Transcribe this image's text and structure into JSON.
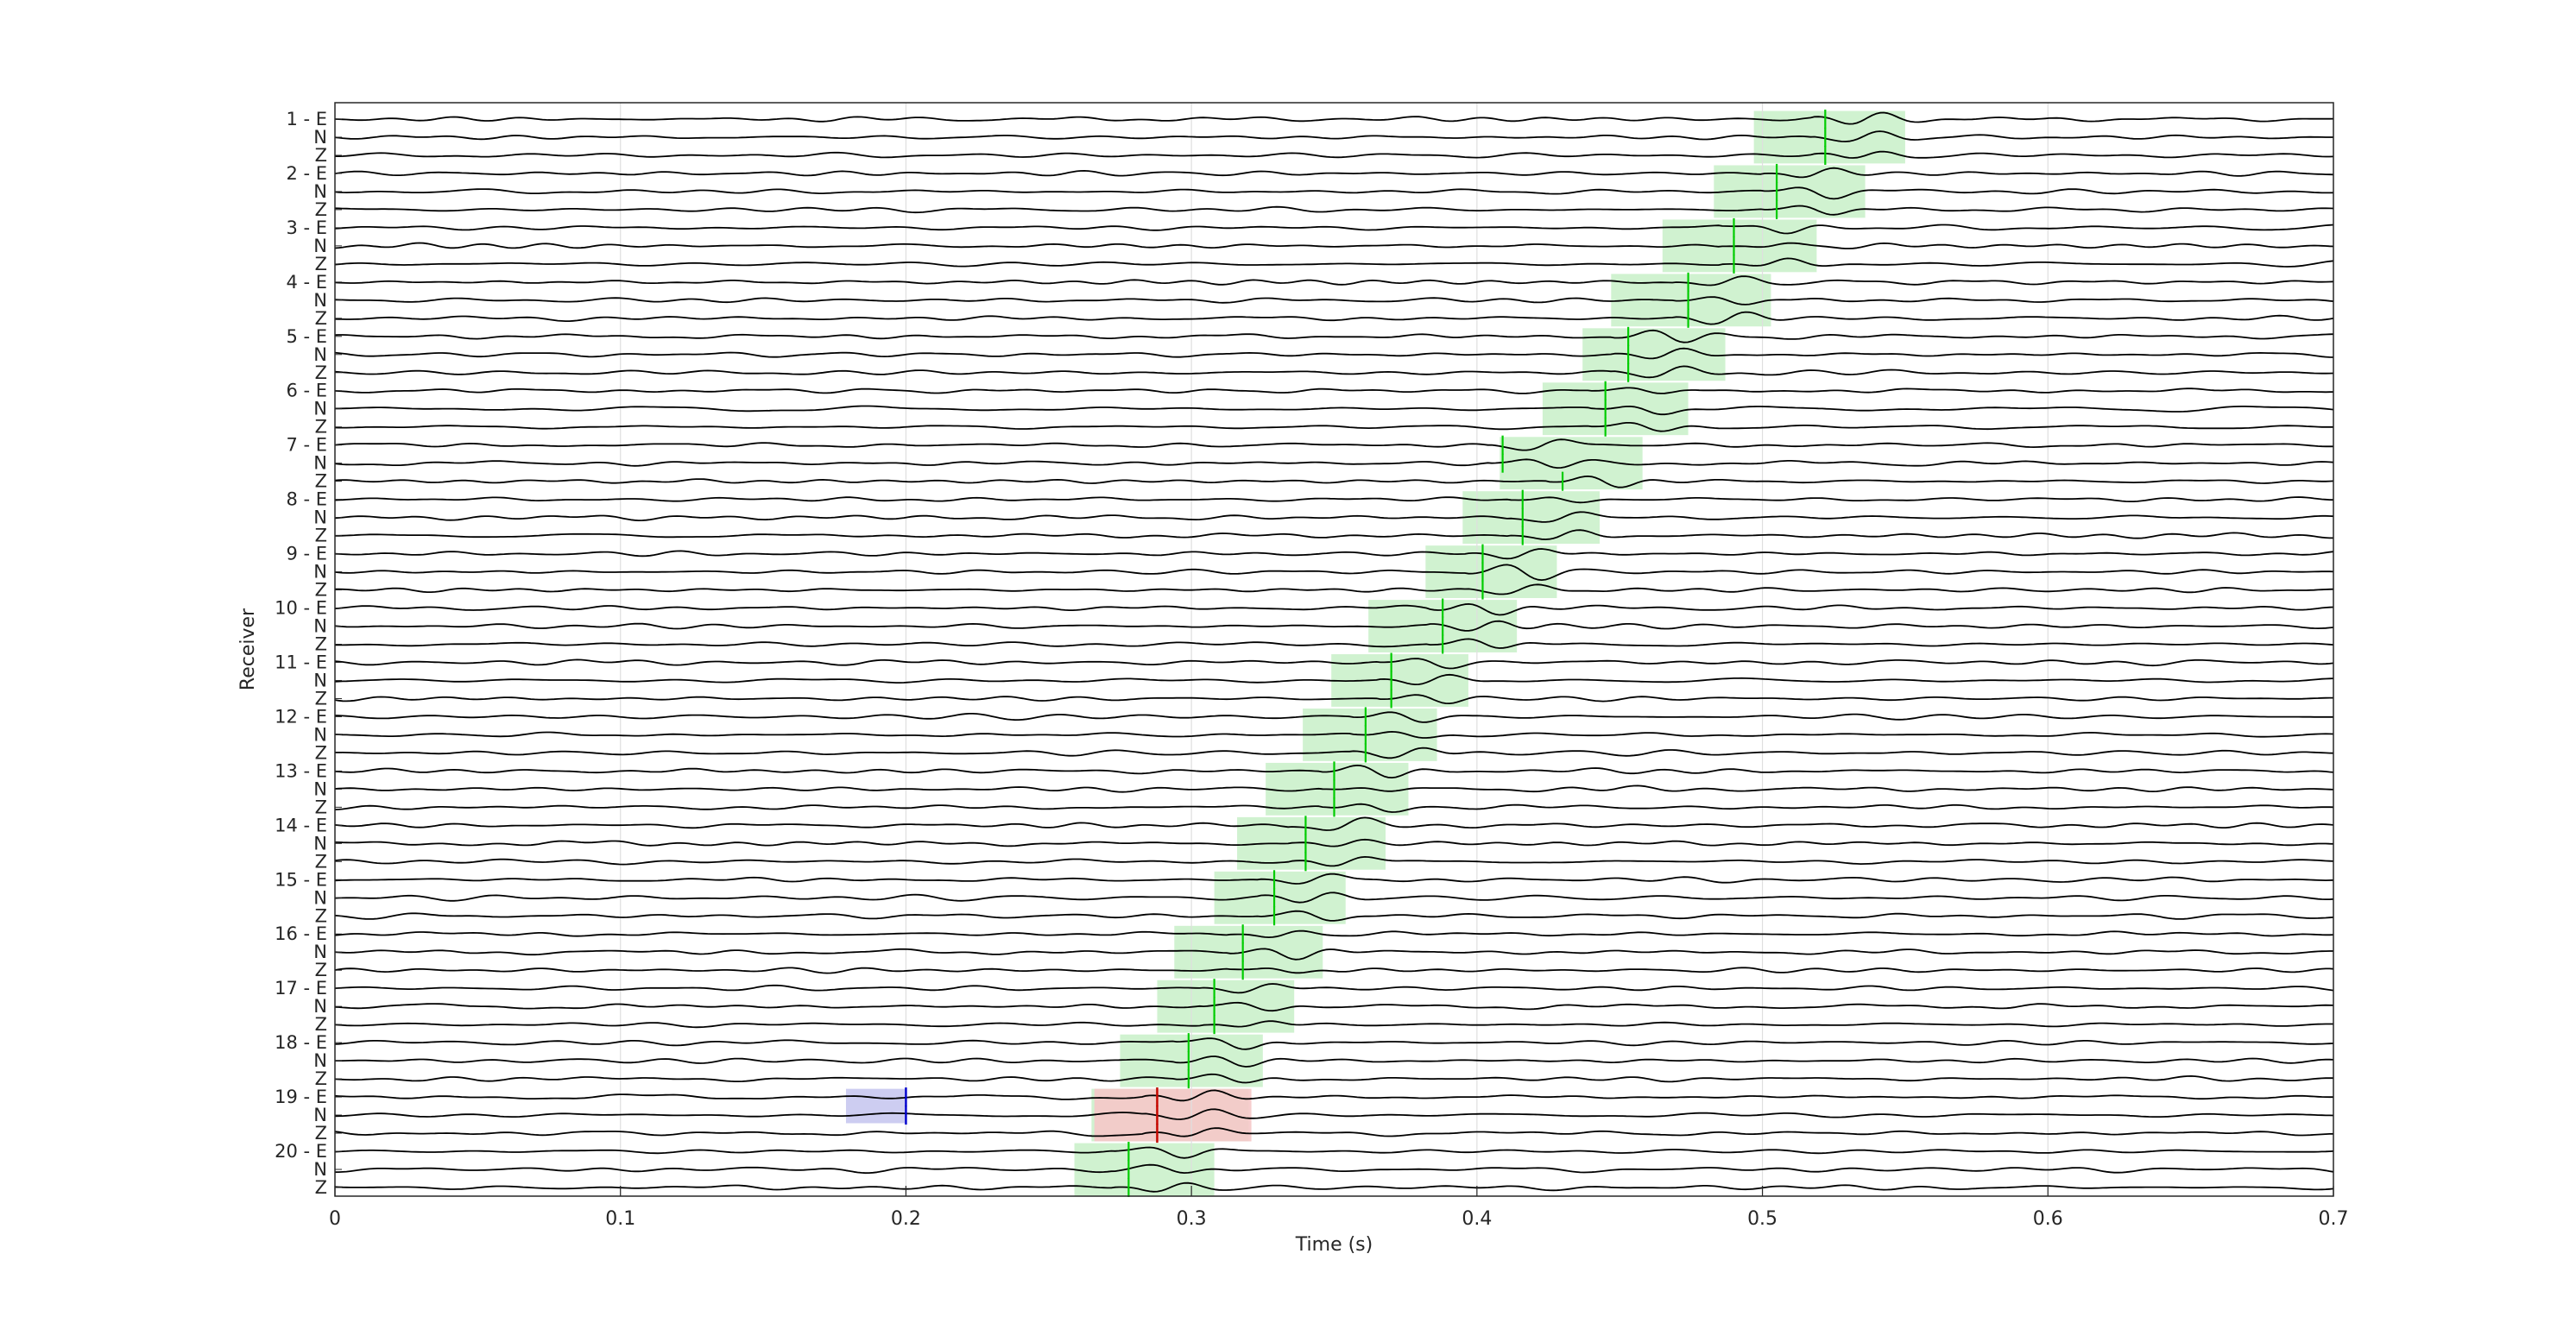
{
  "chart_data": {
    "type": "seismic-trace-plot",
    "xlabel": "Time (s)",
    "ylabel": "Receiver",
    "xlim": [
      0,
      0.7
    ],
    "xticks": [
      0,
      0.1,
      0.2,
      0.3,
      0.4,
      0.5,
      0.6,
      0.7
    ],
    "xtick_labels": [
      "0",
      "0.1",
      "0.2",
      "0.3",
      "0.4",
      "0.5",
      "0.6",
      "0.7"
    ],
    "grid": "vertical",
    "components": [
      "E",
      "N",
      "Z"
    ],
    "receivers": [
      1,
      2,
      3,
      4,
      5,
      6,
      7,
      8,
      9,
      10,
      11,
      12,
      13,
      14,
      15,
      16,
      17,
      18,
      19,
      20
    ],
    "arrivals": [
      {
        "receiver": 1,
        "pick_E": 0.522,
        "pick_N": 0.522,
        "pick_Z": 0.522,
        "window": [
          0.497,
          0.55
        ]
      },
      {
        "receiver": 2,
        "pick_E": 0.505,
        "pick_N": 0.505,
        "pick_Z": 0.505,
        "window": [
          0.483,
          0.536
        ]
      },
      {
        "receiver": 3,
        "pick_E": 0.49,
        "pick_N": 0.49,
        "pick_Z": 0.49,
        "window": [
          0.465,
          0.519
        ]
      },
      {
        "receiver": 4,
        "pick_E": 0.474,
        "pick_N": 0.474,
        "pick_Z": 0.474,
        "window": [
          0.447,
          0.503
        ]
      },
      {
        "receiver": 5,
        "pick_E": 0.453,
        "pick_N": 0.453,
        "pick_Z": 0.453,
        "window": [
          0.437,
          0.487
        ]
      },
      {
        "receiver": 6,
        "pick_E": 0.445,
        "pick_N": 0.445,
        "pick_Z": 0.445,
        "window": [
          0.423,
          0.474
        ]
      },
      {
        "receiver": 7,
        "pick_E": 0.409,
        "pick_N": 0.409,
        "pick_Z": 0.43,
        "window": [
          0.408,
          0.458
        ]
      },
      {
        "receiver": 8,
        "pick_E": 0.416,
        "pick_N": 0.416,
        "pick_Z": 0.416,
        "window": [
          0.395,
          0.443
        ]
      },
      {
        "receiver": 9,
        "pick_E": 0.402,
        "pick_N": 0.402,
        "pick_Z": 0.402,
        "window": [
          0.382,
          0.428
        ]
      },
      {
        "receiver": 10,
        "pick_E": 0.388,
        "pick_N": 0.388,
        "pick_Z": 0.388,
        "window": [
          0.362,
          0.414
        ]
      },
      {
        "receiver": 11,
        "pick_E": 0.37,
        "pick_N": 0.37,
        "pick_Z": 0.37,
        "window": [
          0.349,
          0.397
        ]
      },
      {
        "receiver": 12,
        "pick_E": 0.361,
        "pick_N": 0.361,
        "pick_Z": 0.361,
        "window": [
          0.339,
          0.386
        ]
      },
      {
        "receiver": 13,
        "pick_E": 0.35,
        "pick_N": 0.35,
        "pick_Z": 0.35,
        "window": [
          0.326,
          0.376
        ]
      },
      {
        "receiver": 14,
        "pick_E": 0.34,
        "pick_N": 0.34,
        "pick_Z": 0.34,
        "window": [
          0.316,
          0.368
        ]
      },
      {
        "receiver": 15,
        "pick_E": 0.329,
        "pick_N": 0.329,
        "pick_Z": 0.329,
        "window": [
          0.308,
          0.354
        ]
      },
      {
        "receiver": 16,
        "pick_E": 0.318,
        "pick_N": 0.318,
        "pick_Z": 0.318,
        "window": [
          0.294,
          0.346
        ]
      },
      {
        "receiver": 17,
        "pick_E": 0.308,
        "pick_N": 0.308,
        "pick_Z": 0.308,
        "window": [
          0.288,
          0.336
        ]
      },
      {
        "receiver": 18,
        "pick_E": 0.299,
        "pick_N": 0.299,
        "pick_Z": 0.299,
        "window": [
          0.275,
          0.325
        ]
      },
      {
        "receiver": 19,
        "pick_E": 0.288,
        "pick_N": 0.288,
        "pick_Z": 0.288,
        "window": [
          0.265,
          0.32
        ]
      },
      {
        "receiver": 20,
        "pick_E": 0.278,
        "pick_N": 0.278,
        "pick_Z": 0.278,
        "window": [
          0.259,
          0.308
        ]
      }
    ],
    "special_picks": [
      {
        "receiver": 19,
        "phase": "blue",
        "pick": 0.2,
        "window": [
          0.179,
          0.2
        ],
        "components": [
          "E",
          "N"
        ]
      },
      {
        "receiver": 19,
        "phase": "red",
        "pick": 0.288,
        "window": [
          0.266,
          0.321
        ],
        "components": [
          "E",
          "N",
          "Z"
        ]
      }
    ],
    "colors": {
      "trace": "#000000",
      "pick": "#00cc00",
      "window": "#c8f0c8",
      "blue_pick": "#0000cc",
      "blue_window": "#c8c8f0",
      "red_pick": "#cc0000",
      "red_window": "#f5c8c8",
      "axis": "#262626",
      "grid": "#dfdfdf"
    }
  }
}
